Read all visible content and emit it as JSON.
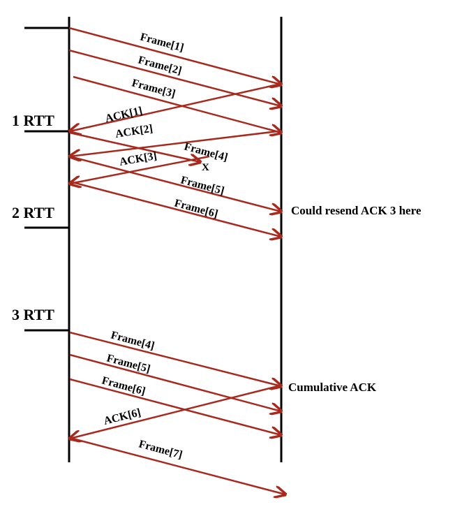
{
  "rtt_labels": [
    "1 RTT",
    "2 RTT",
    "3 RTT"
  ],
  "notes": {
    "resend": "Could resend ACK 3 here",
    "cumulative": "Cumulative ACK"
  },
  "loss_marker": "X",
  "arrows": [
    {
      "label": "Frame[1]",
      "direction": "to-receiver"
    },
    {
      "label": "Frame[2]",
      "direction": "to-receiver"
    },
    {
      "label": "Frame[3]",
      "direction": "to-receiver"
    },
    {
      "label": "ACK[1]",
      "direction": "to-sender"
    },
    {
      "label": "ACK[2]",
      "direction": "to-sender"
    },
    {
      "label": "Frame[4]",
      "direction": "to-receiver",
      "lost": true
    },
    {
      "label": "ACK[3]",
      "direction": "to-sender"
    },
    {
      "label": "Frame[5]",
      "direction": "to-receiver"
    },
    {
      "label": "Frame[6]",
      "direction": "to-receiver"
    },
    {
      "label": "Frame[4]",
      "direction": "to-receiver"
    },
    {
      "label": "Frame[5]",
      "direction": "to-receiver"
    },
    {
      "label": "Frame[6]",
      "direction": "to-receiver"
    },
    {
      "label": "ACK[6]",
      "direction": "to-sender"
    },
    {
      "label": "Frame[7]",
      "direction": "to-receiver"
    }
  ],
  "colors": {
    "arrow": "#a8291d",
    "line": "#000000"
  }
}
